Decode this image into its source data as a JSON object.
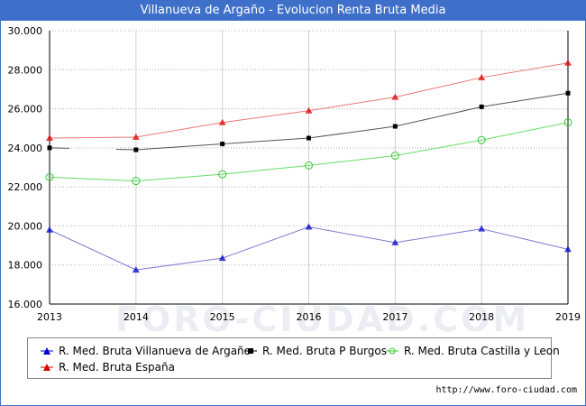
{
  "title": "Villanueva de Argaño - Evolucion Renta Bruta Media",
  "watermark": "FORO-CIUDAD.COM",
  "footer": "http://www.foro-ciudad.com",
  "chart_data": {
    "type": "line",
    "title": "Villanueva de Argaño - Evolucion Renta Bruta Media",
    "x": [
      2013,
      2014,
      2015,
      2016,
      2017,
      2018,
      2019
    ],
    "x_tick_labels": [
      "2013",
      "2014",
      "2015",
      "2016",
      "2017",
      "2018",
      "2019"
    ],
    "ylim": [
      16000,
      30000
    ],
    "y_ticks": [
      16000,
      18000,
      20000,
      22000,
      24000,
      26000,
      28000,
      30000
    ],
    "y_tick_labels": [
      "16.000",
      "18.000",
      "20.000",
      "22.000",
      "24.000",
      "26.000",
      "28.000",
      "30.000"
    ],
    "grid": true,
    "legend_position": "bottom",
    "series": [
      {
        "name": "R. Med. Bruta Villanueva de Argaño",
        "color": "#0000cc",
        "line_color": "#7a7ad6",
        "marker": "triangle",
        "values": [
          19800,
          17750,
          18350,
          19950,
          19150,
          19850,
          18800
        ]
      },
      {
        "name": "R. Med. Bruta P Burgos",
        "color": "#000000",
        "line_color": "#555555",
        "marker": "square",
        "values": [
          24000,
          23900,
          24200,
          24500,
          25100,
          26100,
          26800
        ],
        "missing_segments": [
          [
            0,
            1
          ]
        ]
      },
      {
        "name": "R. Med. Bruta Castilla y Leon",
        "color": "#33cc33",
        "line_color": "#66dd66",
        "marker": "circle",
        "values": [
          22500,
          22300,
          22650,
          23100,
          23600,
          24400,
          25300
        ]
      },
      {
        "name": "R. Med. Bruta España",
        "color": "#dd0000",
        "line_color": "#e87878",
        "marker": "triangle",
        "values": [
          24500,
          24550,
          25300,
          25900,
          26600,
          27600,
          28350
        ]
      }
    ]
  }
}
